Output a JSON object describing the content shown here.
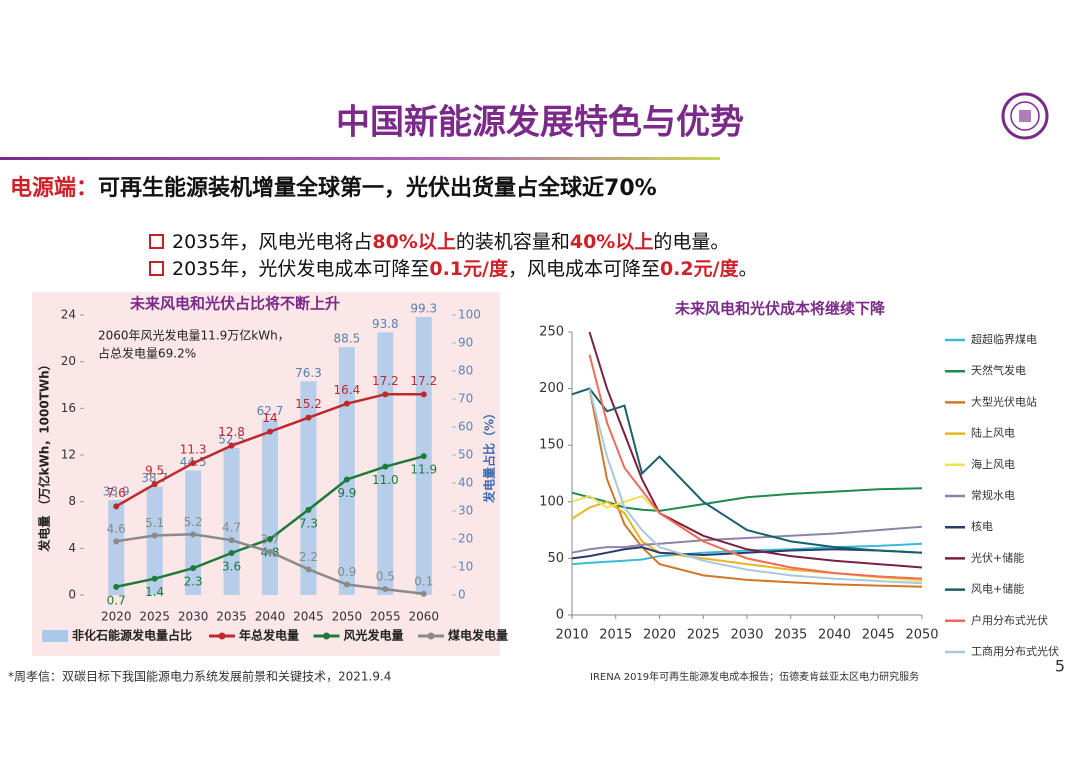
{
  "header": {
    "title": "中国新能源发展特色与优势",
    "subtitle_lead": "电源端：",
    "subtitle": "可再生能源装机增量全球第一，光伏出货量占全球近70%"
  },
  "bullets": [
    {
      "parts": [
        "2035年，风电光电将占",
        "80%以上",
        "的装机容量和",
        "40%以上",
        "的电量。"
      ]
    },
    {
      "parts": [
        "2035年，光伏发电成本可降至",
        "0.1元/度",
        "，风电成本可降至",
        "0.2元/度",
        "。"
      ]
    }
  ],
  "chart_data": [
    {
      "type": "combo",
      "title": "未来风电和光伏占比将不断上升",
      "annotation": [
        "2060年风光发电量11.9万亿kWh，",
        "占总发电量69.2%"
      ],
      "y_label": "发电量 （万亿kWh，1000TWh）",
      "y2_label": "发电量占比（%）",
      "categories": [
        "2020",
        "2025",
        "2030",
        "2035",
        "2040",
        "2045",
        "2050",
        "2055",
        "2060"
      ],
      "ylim": [
        0,
        24
      ],
      "yticks": [
        0,
        4,
        8,
        12,
        16,
        20,
        24
      ],
      "y2lim": [
        0,
        100
      ],
      "y2ticks": [
        0,
        10,
        20,
        30,
        40,
        50,
        60,
        70,
        80,
        90,
        100
      ],
      "series": [
        {
          "name": "非化石能源发电量占比",
          "type": "bar",
          "axis": "y2",
          "color": "#a9c9ea",
          "values": [
            33.9,
            38.7,
            44.5,
            52.5,
            62.7,
            76.3,
            88.5,
            93.8,
            99.3
          ]
        },
        {
          "name": "年总发电量",
          "type": "line",
          "color": "#c0282d",
          "values": [
            7.6,
            9.5,
            11.3,
            12.8,
            14,
            15.2,
            16.4,
            17.2,
            17.2
          ]
        },
        {
          "name": "风光发电量",
          "type": "line",
          "color": "#1f7a3a",
          "values": [
            0.7,
            1.4,
            2.3,
            3.6,
            4.8,
            7.3,
            9.9,
            11,
            11.9
          ],
          "value_labels": [
            "0.7",
            "1.4",
            "2.3",
            "3.6",
            "4.8",
            "7.3",
            "9.9",
            "11.0",
            "11.9"
          ]
        },
        {
          "name": "煤电发电量",
          "type": "line",
          "color": "#8a8a8a",
          "values": [
            4.6,
            5.1,
            5.2,
            4.7,
            3.7,
            2.2,
            0.9,
            0.5,
            0.1
          ]
        }
      ]
    },
    {
      "type": "line",
      "title": "未来风电和光伏成本将继续下降",
      "x": [
        2010,
        2012,
        2014,
        2016,
        2018,
        2020,
        2025,
        2030,
        2035,
        2040,
        2045,
        2050
      ],
      "xlim": [
        2010,
        2050
      ],
      "xticks": [
        2010,
        2015,
        2020,
        2025,
        2030,
        2035,
        2040,
        2045,
        2050
      ],
      "ylim": [
        0,
        250
      ],
      "yticks": [
        0,
        50,
        100,
        150,
        200,
        250
      ],
      "series": [
        {
          "name": "超超临界煤电",
          "color": "#3bb9d8",
          "values": [
            45,
            46,
            47,
            48,
            49,
            52,
            55,
            57,
            58,
            60,
            61,
            63
          ]
        },
        {
          "name": "天然气发电",
          "color": "#1e8a4c",
          "values": [
            108,
            104,
            100,
            95,
            93,
            92,
            98,
            104,
            107,
            109,
            111,
            112
          ]
        },
        {
          "name": "大型光伏电站",
          "color": "#d2772a",
          "values": [
            null,
            200,
            120,
            80,
            60,
            45,
            35,
            31,
            29,
            27,
            26,
            25
          ]
        },
        {
          "name": "陆上风电",
          "color": "#e8b520",
          "values": [
            85,
            95,
            100,
            90,
            65,
            55,
            50,
            45,
            40,
            37,
            34,
            32
          ]
        },
        {
          "name": "海上风电",
          "color": "#efe05a",
          "values": [
            100,
            105,
            95,
            100,
            105,
            90,
            65,
            50,
            42,
            37,
            33,
            30
          ]
        },
        {
          "name": "常规水电",
          "color": "#8f82a8",
          "values": [
            55,
            58,
            60,
            60,
            62,
            63,
            66,
            68,
            70,
            72,
            75,
            78
          ]
        },
        {
          "name": "核电",
          "color": "#2a3a6e",
          "values": [
            50,
            52,
            55,
            58,
            60,
            55,
            53,
            55,
            57,
            58,
            57,
            55
          ]
        },
        {
          "name": "光伏+储能",
          "color": "#7a2040",
          "values": [
            null,
            250,
            200,
            160,
            120,
            90,
            70,
            58,
            52,
            48,
            45,
            42
          ]
        },
        {
          "name": "风电+储能",
          "color": "#17616a",
          "values": [
            195,
            200,
            180,
            185,
            125,
            140,
            100,
            75,
            65,
            60,
            57,
            55
          ]
        },
        {
          "name": "户用分布式光伏",
          "color": "#f06a5a",
          "values": [
            null,
            230,
            170,
            130,
            110,
            90,
            65,
            50,
            42,
            37,
            34,
            32
          ]
        },
        {
          "name": "工商用分布式光伏",
          "color": "#a9c8e0",
          "values": [
            null,
            200,
            140,
            95,
            75,
            60,
            48,
            40,
            35,
            32,
            30,
            28
          ]
        }
      ]
    }
  ],
  "footnotes": {
    "left": "*周孝信：双碳目标下我国能源电力系统发展前景和关键技术，2021.9.4",
    "right": "IRENA 2019年可再生能源发电成本报告；伍德麦肯兹亚太区电力研究服务",
    "page": "5"
  }
}
